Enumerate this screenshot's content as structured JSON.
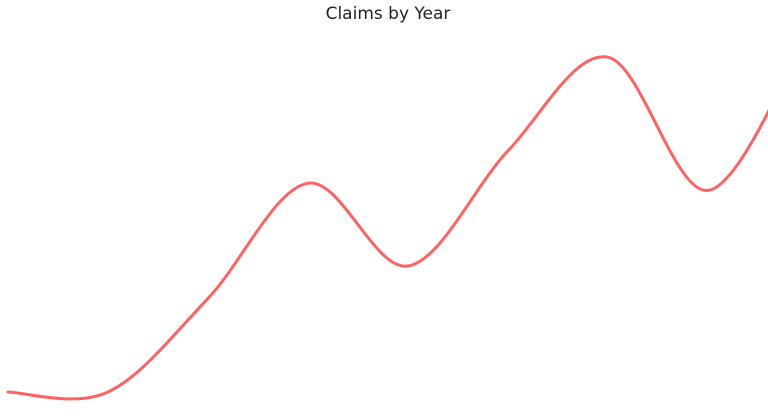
{
  "chart_data": {
    "type": "line",
    "title": "Claims by Year",
    "xlabel": "",
    "ylabel": "",
    "x": [
      0,
      1,
      2,
      3,
      4,
      5,
      6,
      7,
      8
    ],
    "series": [
      {
        "values": [
          5,
          5,
          31,
          63,
          40,
          72,
          98,
          61,
          105
        ],
        "color": "#ff6262"
      }
    ],
    "ylim": [
      0,
      105
    ],
    "smooth": true,
    "grid": false,
    "axes_visible": false,
    "legend": "none"
  }
}
